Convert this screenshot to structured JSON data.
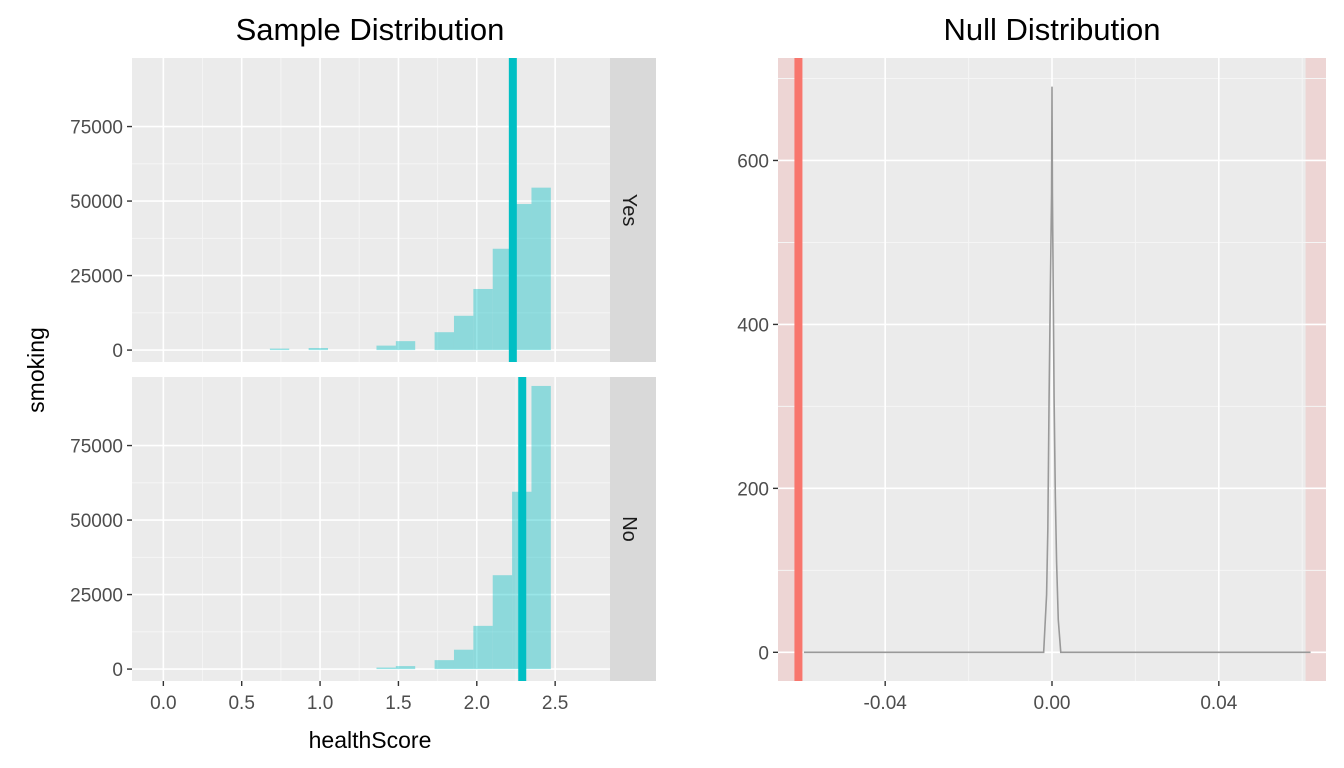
{
  "chart_data": [
    {
      "type": "bar",
      "title": "Sample Distribution",
      "xlabel": "healthScore",
      "ylabel": "smoking",
      "xlim": [
        -0.2,
        2.85
      ],
      "ylim": [
        -4000,
        98000
      ],
      "x_ticks": [
        0.0,
        0.5,
        1.0,
        1.5,
        2.0,
        2.5
      ],
      "x_tick_labels": [
        "0.0",
        "0.5",
        "1.0",
        "1.5",
        "2.0",
        "2.5"
      ],
      "y_ticks": [
        0,
        25000,
        50000,
        75000
      ],
      "y_tick_labels": [
        "0",
        "25000",
        "50000",
        "75000"
      ],
      "grid": true,
      "bin_width": 0.1236,
      "fill_color": "#00BFC4",
      "fill_opacity": 0.4,
      "mean_line_color": "#00BFC4",
      "facets": [
        {
          "label": "Yes",
          "bins": [
            {
              "x": 0.7416,
              "value": 500
            },
            {
              "x": 0.9889,
              "value": 700
            },
            {
              "x": 1.4217,
              "value": 1500
            },
            {
              "x": 1.5453,
              "value": 3000
            },
            {
              "x": 1.7926,
              "value": 6000
            },
            {
              "x": 1.9162,
              "value": 11500
            },
            {
              "x": 2.0399,
              "value": 20500
            },
            {
              "x": 2.1635,
              "value": 34000
            },
            {
              "x": 2.2871,
              "value": 49000
            },
            {
              "x": 2.4107,
              "value": 54500
            }
          ],
          "mean": 2.23
        },
        {
          "label": "No",
          "bins": [
            {
              "x": 1.4217,
              "value": 500
            },
            {
              "x": 1.5453,
              "value": 1000
            },
            {
              "x": 1.7926,
              "value": 3000
            },
            {
              "x": 1.9162,
              "value": 6500
            },
            {
              "x": 2.0399,
              "value": 14500
            },
            {
              "x": 2.1635,
              "value": 31500
            },
            {
              "x": 2.2871,
              "value": 59500
            },
            {
              "x": 2.4107,
              "value": 95000
            }
          ],
          "mean": 2.29
        }
      ]
    },
    {
      "type": "line",
      "title": "Null Distribution",
      "xlabel": "",
      "ylabel": "",
      "xlim": [
        -0.0657,
        0.0657
      ],
      "ylim": [
        -35,
        725
      ],
      "x_ticks": [
        -0.04,
        0.0,
        0.04
      ],
      "x_tick_labels": [
        "-0.04",
        "0.00",
        "0.04"
      ],
      "y_ticks": [
        0,
        200,
        400,
        600
      ],
      "y_tick_labels": [
        "0",
        "200",
        "400",
        "600"
      ],
      "grid": true,
      "line_color": "#999999",
      "series": [
        {
          "x": [
            -0.0595,
            -0.002,
            -0.0013,
            -0.001,
            -0.0007,
            -0.0004,
            -0.0001,
            0.0,
            0.0001,
            0.0003,
            0.0005,
            0.0008,
            0.0011,
            0.0015,
            0.0021,
            0.062
          ],
          "values": [
            0,
            0,
            70,
            150,
            310,
            440,
            560,
            690,
            560,
            440,
            310,
            190,
            110,
            40,
            0,
            0
          ]
        }
      ],
      "observed_stat": -0.0608,
      "observed_line_color": "#F8766D",
      "shade_color": "#F8766D",
      "shade_left": [
        -0.0657,
        -0.0608
      ],
      "shade_right": [
        0.0608,
        0.0657
      ]
    }
  ]
}
